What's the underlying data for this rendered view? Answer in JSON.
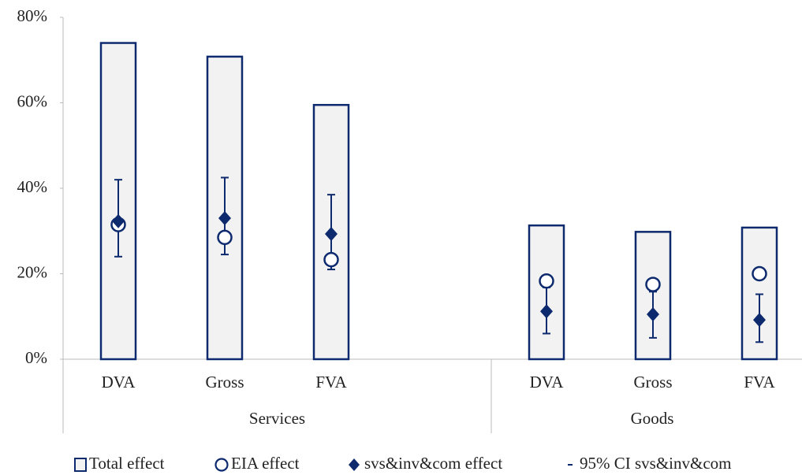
{
  "chart_data": {
    "type": "bar",
    "groups": [
      {
        "name": "Services",
        "categories": [
          "DVA",
          "Gross",
          "FVA"
        ]
      },
      {
        "name": "Goods",
        "categories": [
          "DVA",
          "Gross",
          "FVA"
        ]
      }
    ],
    "series": [
      {
        "name": "Total effect",
        "color": "#0e2a6e",
        "fill": "#f2f2f2",
        "values": [
          74,
          70.8,
          59.5,
          31.3,
          29.8,
          30.8
        ]
      },
      {
        "name": "EIA effect",
        "color": "#0e2a6e",
        "values": [
          31.5,
          28.5,
          23.3,
          18.3,
          17.5,
          20
        ]
      },
      {
        "name": "svs&inv&com effect",
        "color": "#0e2a6e",
        "values": [
          32.3,
          33,
          29.3,
          11.2,
          10.5,
          9.2
        ]
      },
      {
        "name": "95% CI svs&inv&com",
        "color": "#0e2a6e",
        "low": [
          24,
          24.5,
          21,
          6,
          5,
          4
        ],
        "high": [
          42,
          42.5,
          38.5,
          16.8,
          15.8,
          15.2
        ]
      }
    ],
    "ylim": [
      0,
      80
    ],
    "yticks": [
      {
        "value": 0,
        "label": "0%"
      },
      {
        "value": 20,
        "label": "20%"
      },
      {
        "value": 40,
        "label": "40%"
      },
      {
        "value": 60,
        "label": "60%"
      },
      {
        "value": 80,
        "label": "80%"
      }
    ],
    "legend": "bottom"
  }
}
